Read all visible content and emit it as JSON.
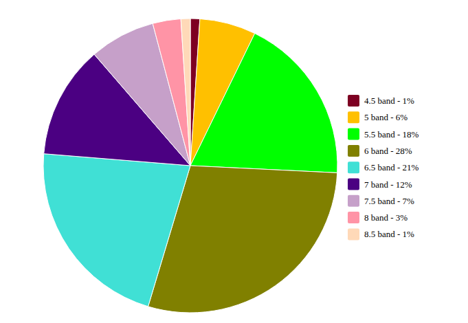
{
  "chart_data": {
    "type": "pie",
    "categories": [
      "4.5 band - 1%",
      "5 band - 6%",
      "5.5 band - 18%",
      "6 band - 28%",
      "6.5 band - 21%",
      "7 band - 12%",
      "7.5 band - 7%",
      "8 band - 3%",
      "8.5 band - 1%"
    ],
    "values": [
      1,
      6,
      18,
      28,
      21,
      12,
      7,
      3,
      1
    ],
    "colors": [
      "#7d0022",
      "#ffc000",
      "#00ff00",
      "#808000",
      "#40e0d5",
      "#4b0082",
      "#c6a0c9",
      "#ff94a6",
      "#ffd9b8"
    ],
    "legend": "right"
  }
}
